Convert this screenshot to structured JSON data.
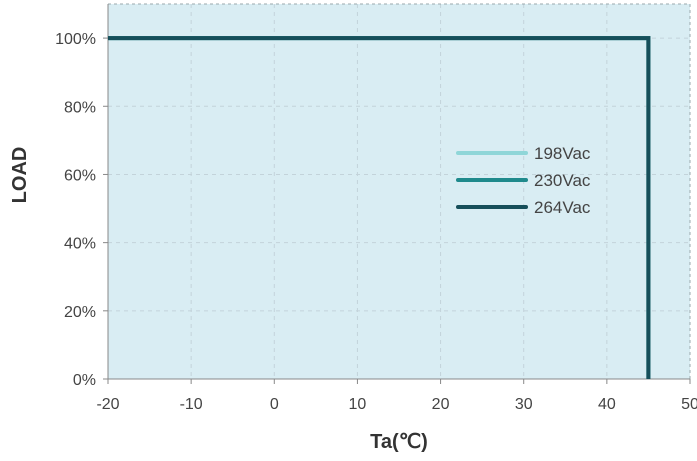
{
  "chart_data": {
    "type": "line",
    "xlabel": "Ta(℃)",
    "ylabel": "LOAD",
    "xlim": [
      -20,
      50
    ],
    "ylim": [
      0,
      110
    ],
    "x_ticks": [
      -20,
      -10,
      0,
      10,
      20,
      30,
      40,
      50
    ],
    "x_tick_labels": [
      "-20",
      "-10",
      "0",
      "10",
      "20",
      "30",
      "40",
      "50"
    ],
    "y_ticks": [
      0,
      20,
      40,
      60,
      80,
      100
    ],
    "y_tick_labels": [
      "0%",
      "20%",
      "40%",
      "60%",
      "80%",
      "100%"
    ],
    "grid": true,
    "legend_position": "right-center",
    "colors": {
      "plot_background": "#d9edf3",
      "grid": "#c3d3da",
      "axis": "#888888"
    },
    "series": [
      {
        "name": "198Vac",
        "color": "#8fd6d8",
        "x": [
          -20,
          45,
          45
        ],
        "y": [
          100,
          100,
          0
        ]
      },
      {
        "name": "230Vac",
        "color": "#1f8a8c",
        "x": [
          -20,
          45,
          45
        ],
        "y": [
          100,
          100,
          0
        ]
      },
      {
        "name": "264Vac",
        "color": "#164f5a",
        "x": [
          -20,
          45,
          45
        ],
        "y": [
          100,
          100,
          0
        ]
      }
    ]
  }
}
